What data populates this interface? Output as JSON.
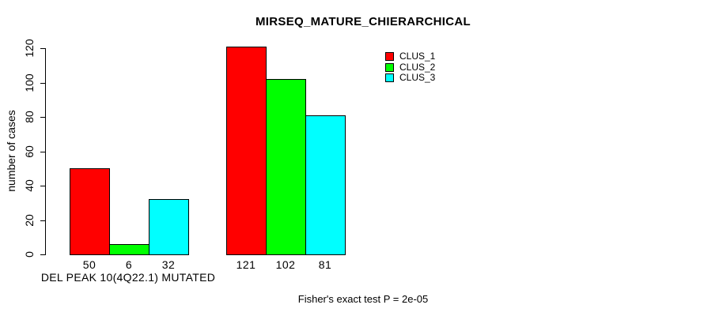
{
  "chart_data": {
    "type": "bar",
    "title": "MIRSEQ_MATURE_CHIERARCHICAL",
    "ylabel": "number of cases",
    "xlabel": "DEL PEAK 10(4Q22.1) MUTATED",
    "footnote": "Fisher's exact test P = 2e-05",
    "ylim": [
      0,
      120
    ],
    "yticks": [
      0,
      20,
      40,
      60,
      80,
      100,
      120
    ],
    "grid": false,
    "legend_position": "top-right",
    "categories": [
      "DEL PEAK 10(4Q22.1) MUTATED",
      ""
    ],
    "series": [
      {
        "name": "CLUS_1",
        "color": "#ff0000",
        "values": [
          50,
          121
        ]
      },
      {
        "name": "CLUS_2",
        "color": "#00ff00",
        "values": [
          6,
          102
        ]
      },
      {
        "name": "CLUS_3",
        "color": "#00ffff",
        "values": [
          32,
          81
        ]
      }
    ],
    "bar_value_labels": [
      [
        50,
        6,
        32
      ],
      [
        121,
        102,
        81
      ]
    ],
    "colors": {
      "background": "#ffffff",
      "axis": "#000000",
      "text": "#000000"
    }
  }
}
